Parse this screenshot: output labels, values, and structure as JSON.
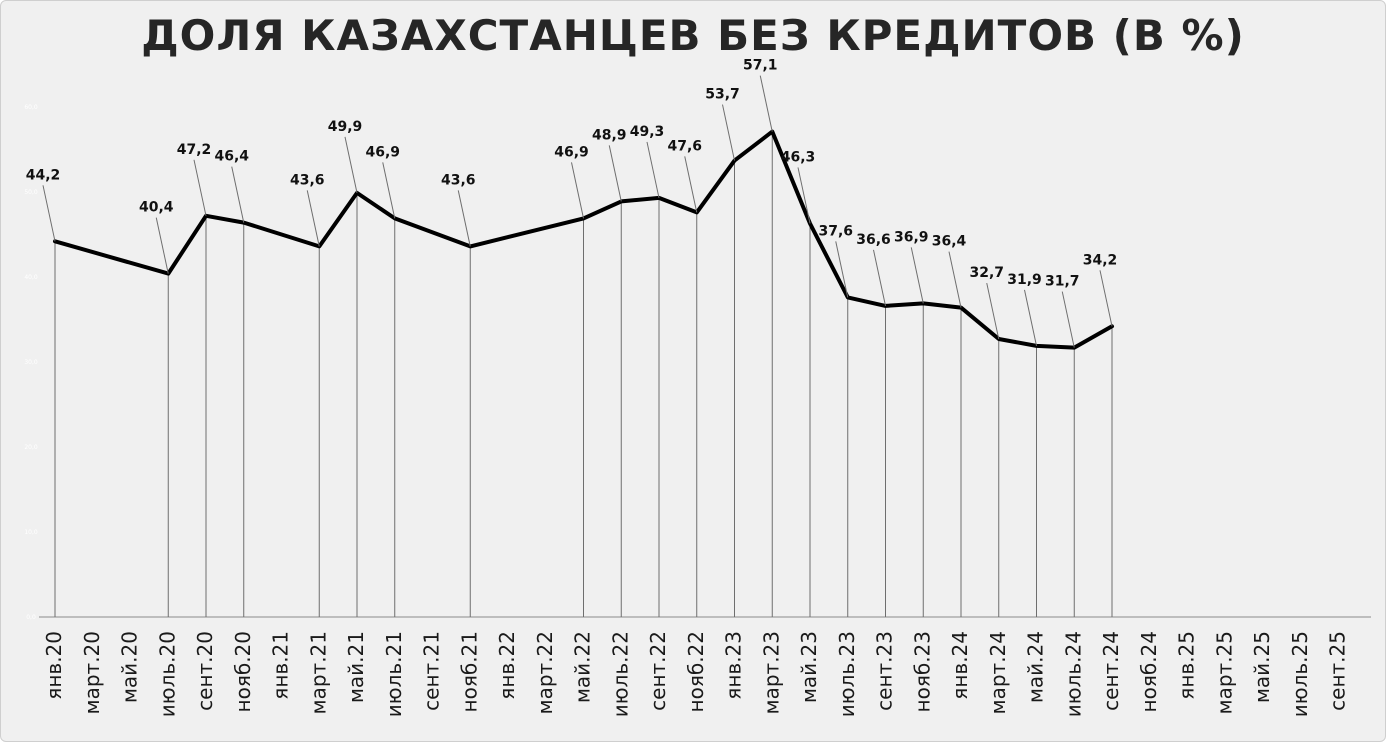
{
  "chart_data": {
    "type": "line",
    "title": "ДОЛЯ КАЗАХСТАНЦЕВ БЕЗ КРЕДИТОВ (В %)",
    "xlabel": "",
    "ylabel": "",
    "ylim": [
      0,
      60
    ],
    "y_ticks": [
      "0,0",
      "10,0",
      "20,0",
      "30,0",
      "40,0",
      "50,0",
      "60,0"
    ],
    "grid": false,
    "legend": "none",
    "line_color": "#000000",
    "categories": [
      "янв.20",
      "март.20",
      "май.20",
      "июль.20",
      "сент.20",
      "нояб.20",
      "янв.21",
      "март.21",
      "май.21",
      "июль.21",
      "сент.21",
      "нояб.21",
      "янв.22",
      "март.22",
      "май.22",
      "июль.22",
      "сент.22",
      "нояб.22",
      "янв.23",
      "март.23",
      "май.23",
      "июль.23",
      "сент.23",
      "нояб.23",
      "янв.24",
      "март.24",
      "май.24",
      "июль.24",
      "сент.24",
      "нояб.24",
      "янв.25",
      "март.25",
      "май.25",
      "июль.25",
      "сент.25"
    ],
    "points": [
      {
        "x": "янв.20",
        "value": 44.2,
        "label": "44,2"
      },
      {
        "x": "июль.20",
        "value": 40.4,
        "label": "40,4"
      },
      {
        "x": "сент.20",
        "value": 47.2,
        "label": "47,2"
      },
      {
        "x": "нояб.20",
        "value": 46.4,
        "label": "46,4"
      },
      {
        "x": "март.21",
        "value": 43.6,
        "label": "43,6"
      },
      {
        "x": "май.21",
        "value": 49.9,
        "label": "49,9"
      },
      {
        "x": "июль.21",
        "value": 46.9,
        "label": "46,9"
      },
      {
        "x": "нояб.21",
        "value": 43.6,
        "label": "43,6"
      },
      {
        "x": "май.22",
        "value": 46.9,
        "label": "46,9"
      },
      {
        "x": "июль.22",
        "value": 48.9,
        "label": "48,9"
      },
      {
        "x": "сент.22",
        "value": 49.3,
        "label": "49,3"
      },
      {
        "x": "нояб.22",
        "value": 47.6,
        "label": "47,6"
      },
      {
        "x": "янв.23",
        "value": 53.7,
        "label": "53,7"
      },
      {
        "x": "март.23",
        "value": 57.1,
        "label": "57,1"
      },
      {
        "x": "май.23",
        "value": 46.3,
        "label": "46,3"
      },
      {
        "x": "июль.23",
        "value": 37.6,
        "label": "37,6"
      },
      {
        "x": "сент.23",
        "value": 36.6,
        "label": "36,6"
      },
      {
        "x": "нояб.23",
        "value": 36.9,
        "label": "36,9"
      },
      {
        "x": "янв.24",
        "value": 36.4,
        "label": "36,4"
      },
      {
        "x": "март.24",
        "value": 32.7,
        "label": "32,7"
      },
      {
        "x": "май.24",
        "value": 31.9,
        "label": "31,9"
      },
      {
        "x": "июль.24",
        "value": 31.7,
        "label": "31,7"
      },
      {
        "x": "сент.24",
        "value": 34.2,
        "label": "34,2"
      }
    ]
  }
}
